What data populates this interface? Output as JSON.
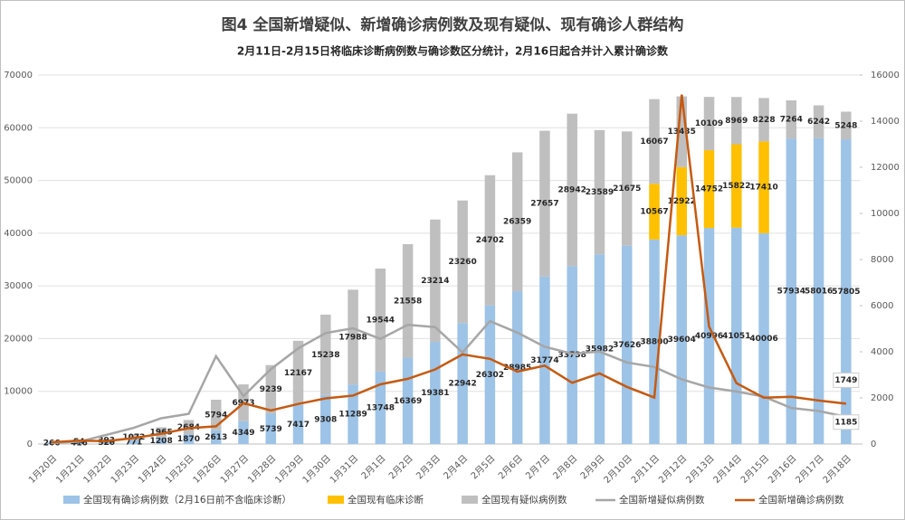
{
  "chart_data": {
    "type": "bar",
    "title": "图4 全国新增疑似、新增确诊病例数及现有疑似、现有确诊人群结构",
    "subtitle": "2月11日-2月15日将临床诊断病例数与确诊数区分统计，2月16日起合并计入累计确诊数",
    "categories": [
      "1月20日",
      "1月21日",
      "1月22日",
      "1月23日",
      "1月24日",
      "1月25日",
      "1月26日",
      "1月27日",
      "1月28日",
      "1月29日",
      "1月30日",
      "1月31日",
      "2月1日",
      "2月2日",
      "2月3日",
      "2月4日",
      "2月5日",
      "2月6日",
      "2月7日",
      "2月8日",
      "2月9日",
      "2月10日",
      "2月11日",
      "2月12日",
      "2月13日",
      "2月14日",
      "2月15日",
      "2月16日",
      "2月17日",
      "2月18日"
    ],
    "series": [
      {
        "name": "全国现有确诊病例数（2月16日前不含临床诊断）",
        "type": "bar",
        "color": "#9dc3e6",
        "values": [
          266,
          416,
          520,
          771,
          1208,
          1870,
          2613,
          4349,
          5739,
          7417,
          9308,
          11289,
          13748,
          16369,
          19381,
          22942,
          26302,
          28985,
          31774,
          33738,
          35982,
          37626,
          38800,
          39604,
          40996,
          41051,
          40006,
          57934,
          58016,
          57805
        ]
      },
      {
        "name": "全国现有临床诊断",
        "type": "bar",
        "color": "#ffc000",
        "values": [
          null,
          null,
          null,
          null,
          null,
          null,
          null,
          null,
          null,
          null,
          null,
          null,
          null,
          null,
          null,
          null,
          null,
          null,
          null,
          null,
          null,
          null,
          10567,
          12922,
          14752,
          15822,
          17410,
          null,
          null,
          null
        ]
      },
      {
        "name": "全国现有疑似病例数",
        "type": "bar",
        "color": "#bfbfbf",
        "values": [
          null,
          54,
          393,
          1072,
          1965,
          2684,
          5794,
          6973,
          9239,
          12167,
          15238,
          17988,
          19544,
          21558,
          23214,
          23260,
          24702,
          26359,
          27657,
          28942,
          23589,
          21675,
          16067,
          13435,
          10109,
          8969,
          8228,
          7264,
          6242,
          5248
        ]
      },
      {
        "name": "全国新增疑似病例数",
        "type": "line",
        "axis": "y2",
        "color": "#a6a6a6",
        "values": [
          50,
          100,
          400,
          700,
          1118,
          1309,
          3806,
          2077,
          3248,
          4148,
          4812,
          5019,
          4562,
          5173,
          5072,
          3971,
          5328,
          4833,
          4214,
          3916,
          4008,
          3536,
          3342,
          2807,
          2450,
          2277,
          2055,
          1563,
          1432,
          1185
        ]
      },
      {
        "name": "全国新增确诊病例数",
        "type": "line",
        "axis": "y2",
        "color": "#c55a11",
        "values": [
          77,
          149,
          131,
          259,
          444,
          688,
          769,
          1771,
          1459,
          1737,
          1982,
          2102,
          2590,
          2829,
          3235,
          3887,
          3694,
          3143,
          3399,
          2656,
          3062,
          2478,
          2015,
          15152,
          5090,
          2641,
          2009,
          2048,
          1886,
          1749
        ]
      }
    ],
    "ylim": [
      0,
      70000
    ],
    "yticks": [
      0,
      10000,
      20000,
      30000,
      40000,
      50000,
      60000,
      70000
    ],
    "y2lim": [
      0,
      16000
    ],
    "y2ticks": [
      0,
      2000,
      4000,
      6000,
      8000,
      10000,
      12000,
      14000,
      16000
    ],
    "grid": true
  }
}
